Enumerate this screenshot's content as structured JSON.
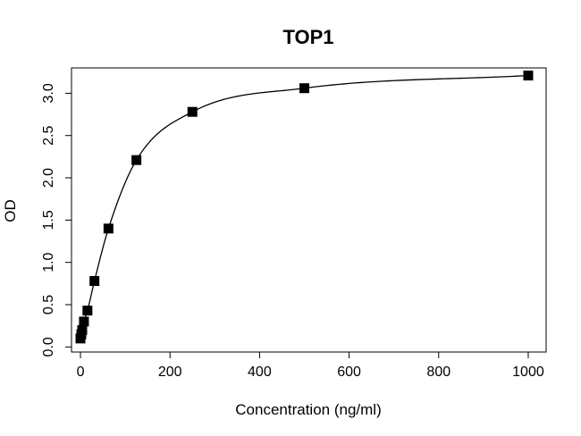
{
  "chart_data": {
    "type": "scatter",
    "title": "TOP1",
    "xlabel": "Concentration (ng/ml)",
    "ylabel": "OD",
    "xlim": [
      -20,
      1040
    ],
    "ylim": [
      -0.06,
      3.3
    ],
    "xticks": [
      0,
      200,
      400,
      600,
      800,
      1000
    ],
    "xtick_labels": [
      "0",
      "200",
      "400",
      "600",
      "800",
      "1000"
    ],
    "yticks": [
      0,
      0.5,
      1,
      1.5,
      2,
      2.5,
      3
    ],
    "ytick_labels": [
      "0.0",
      "0.5",
      "1.0",
      "1.5",
      "2.0",
      "2.5",
      "3.0"
    ],
    "grid": false,
    "legend": "none",
    "marker": "filled-square",
    "series": [
      {
        "x": [
          0,
          1.95,
          3.9,
          7.8,
          15.6,
          31.25,
          62.5,
          125,
          250,
          500,
          1000
        ],
        "y": [
          0.1,
          0.15,
          0.2,
          0.3,
          0.43,
          0.78,
          1.4,
          2.21,
          2.78,
          3.06,
          3.21
        ]
      }
    ],
    "fit_curve": true,
    "colors": {
      "points": "#000000",
      "curve": "#000000"
    }
  }
}
